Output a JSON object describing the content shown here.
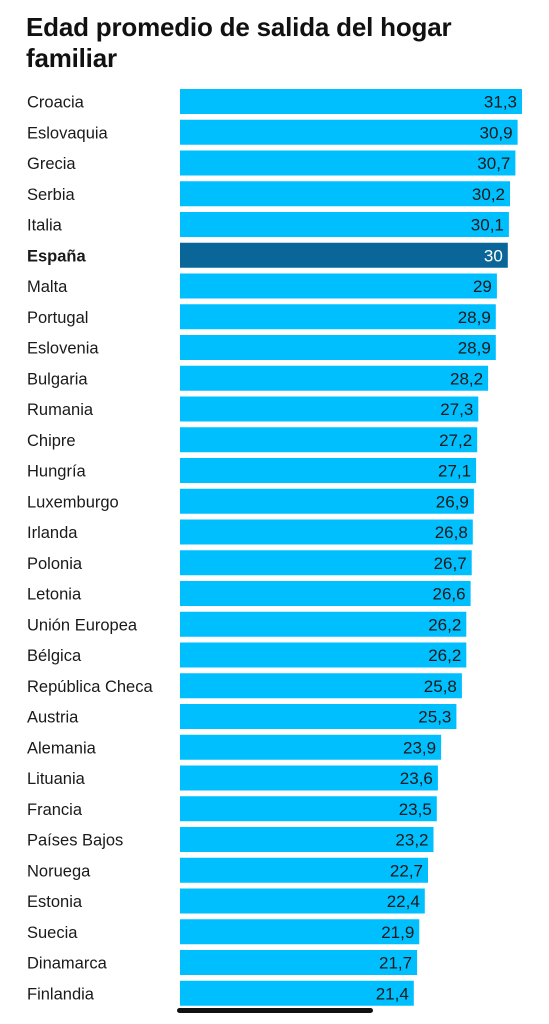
{
  "chart_data": {
    "type": "bar",
    "orientation": "horizontal",
    "title": "Edad promedio de salida del hogar familiar",
    "categories": [
      "Croacia",
      "Eslovaquia",
      "Grecia",
      "Serbia",
      "Italia",
      "España",
      "Malta",
      "Portugal",
      "Eslovenia",
      "Bulgaria",
      "Rumania",
      "Chipre",
      "Hungría",
      "Luxemburgo",
      "Irlanda",
      "Polonia",
      "Letonia",
      "Unión Europea",
      "Bélgica",
      "República Checa",
      "Austria",
      "Alemania",
      "Lituania",
      "Francia",
      "Países Bajos",
      "Noruega",
      "Estonia",
      "Suecia",
      "Dinamarca",
      "Finlandia"
    ],
    "values": [
      31.3,
      30.9,
      30.7,
      30.2,
      30.1,
      30,
      29,
      28.9,
      28.9,
      28.2,
      27.3,
      27.2,
      27.1,
      26.9,
      26.8,
      26.7,
      26.6,
      26.2,
      26.2,
      25.8,
      25.3,
      23.9,
      23.6,
      23.5,
      23.2,
      22.7,
      22.4,
      21.9,
      21.7,
      21.4
    ],
    "value_labels": [
      "31,3",
      "30,9",
      "30,7",
      "30,2",
      "30,1",
      "30",
      "29",
      "28,9",
      "28,9",
      "28,2",
      "27,3",
      "27,2",
      "27,1",
      "26,9",
      "26,8",
      "26,7",
      "26,6",
      "26,2",
      "26,2",
      "25,8",
      "25,3",
      "23,9",
      "23,6",
      "23,5",
      "23,2",
      "22,7",
      "22,4",
      "21,9",
      "21,7",
      "21,4"
    ],
    "highlight": "España",
    "colors": {
      "bar": "#00bfff",
      "highlight": "#0a6699",
      "value_text": "#1a1a1a",
      "highlight_text": "#ffffff"
    },
    "grid": false,
    "legend": false
  }
}
